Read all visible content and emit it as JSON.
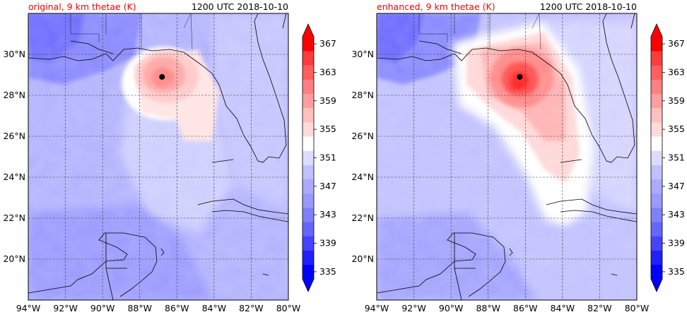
{
  "panels": [
    {
      "id": "original",
      "title_left": "original, 9 km thetae (K)",
      "title_right": "1200 UTC 2018-10-10",
      "storm_center": {
        "lon": -86.8,
        "lat": 28.9
      },
      "intensity": 1.0
    },
    {
      "id": "enhanced",
      "title_left": "enhanced, 9 km thetae (K)",
      "title_right": "1200 UTC 2018-10-10",
      "storm_center": {
        "lon": -86.3,
        "lat": 28.9
      },
      "intensity": 1.5
    }
  ],
  "lat_labels": [
    "30°N",
    "28°N",
    "26°N",
    "24°N",
    "22°N",
    "20°N"
  ],
  "lon_labels": [
    "94°W",
    "92°W",
    "90°W",
    "88°W",
    "86°W",
    "84°W",
    "82°W",
    "80°W"
  ],
  "lon_range": [
    -94,
    -80
  ],
  "lat_range": [
    18,
    32
  ],
  "colorbar": {
    "tick_labels": [
      "335",
      "339",
      "343",
      "347",
      "351",
      "355",
      "359",
      "363",
      "367"
    ],
    "levels": [
      335,
      337,
      339,
      341,
      343,
      345,
      347,
      349,
      351,
      353,
      355,
      357,
      359,
      361,
      363,
      365,
      367
    ],
    "colors": [
      "#0000ff",
      "#2020ff",
      "#4444ff",
      "#6666ff",
      "#8080ff",
      "#9999ff",
      "#aaaaff",
      "#c0c0ff",
      "#dcdcff",
      "#ffffff",
      "#ffdada",
      "#ffc0c0",
      "#ff9e9e",
      "#ff8080",
      "#ff5e5e",
      "#ff3c3c",
      "#ff0000"
    ]
  }
}
